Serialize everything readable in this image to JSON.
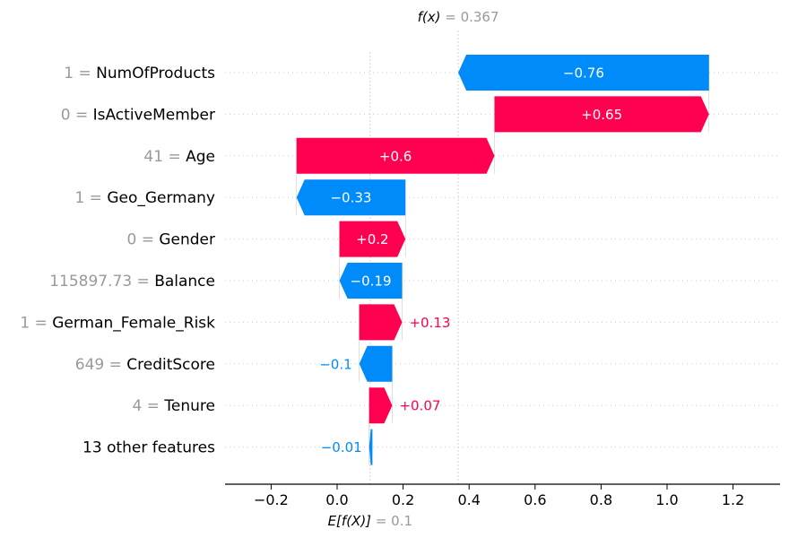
{
  "chart_data": {
    "type": "waterfall",
    "fx_label": "f(x)",
    "fx_value": "0.367",
    "ex_label": "E[f(X)]",
    "ex_value": "0.1",
    "base_value": 0.1,
    "output_value": 0.367,
    "xlim": [
      -0.34,
      1.35
    ],
    "xticks": [
      -0.2,
      0.0,
      0.2,
      0.4,
      0.6,
      0.8,
      1.0,
      1.2
    ],
    "xtick_labels": [
      "−0.2",
      "0.0",
      "0.2",
      "0.4",
      "0.6",
      "0.8",
      "1.0",
      "1.2"
    ],
    "features": [
      {
        "value": "1",
        "name": "NumOfProducts",
        "contribution": -0.76,
        "label": "−0.76"
      },
      {
        "value": "0",
        "name": "IsActiveMember",
        "contribution": 0.65,
        "label": "+0.65"
      },
      {
        "value": "41",
        "name": "Age",
        "contribution": 0.6,
        "label": "+0.6"
      },
      {
        "value": "1",
        "name": "Geo_Germany",
        "contribution": -0.33,
        "label": "−0.33"
      },
      {
        "value": "0",
        "name": "Gender",
        "contribution": 0.2,
        "label": "+0.2"
      },
      {
        "value": "115897.73",
        "name": "Balance",
        "contribution": -0.19,
        "label": "−0.19"
      },
      {
        "value": "1",
        "name": "German_Female_Risk",
        "contribution": 0.13,
        "label": "+0.13"
      },
      {
        "value": "649",
        "name": "CreditScore",
        "contribution": -0.1,
        "label": "−0.1"
      },
      {
        "value": "4",
        "name": "Tenure",
        "contribution": 0.07,
        "label": "+0.07"
      },
      {
        "value": "",
        "name": "13 other features",
        "contribution": -0.01,
        "label": "−0.01"
      }
    ],
    "colors": {
      "positive": "#ff0051",
      "negative": "#008bfb",
      "axis": "#000000",
      "value_text": "#999999",
      "guide": "#cccccc"
    }
  }
}
